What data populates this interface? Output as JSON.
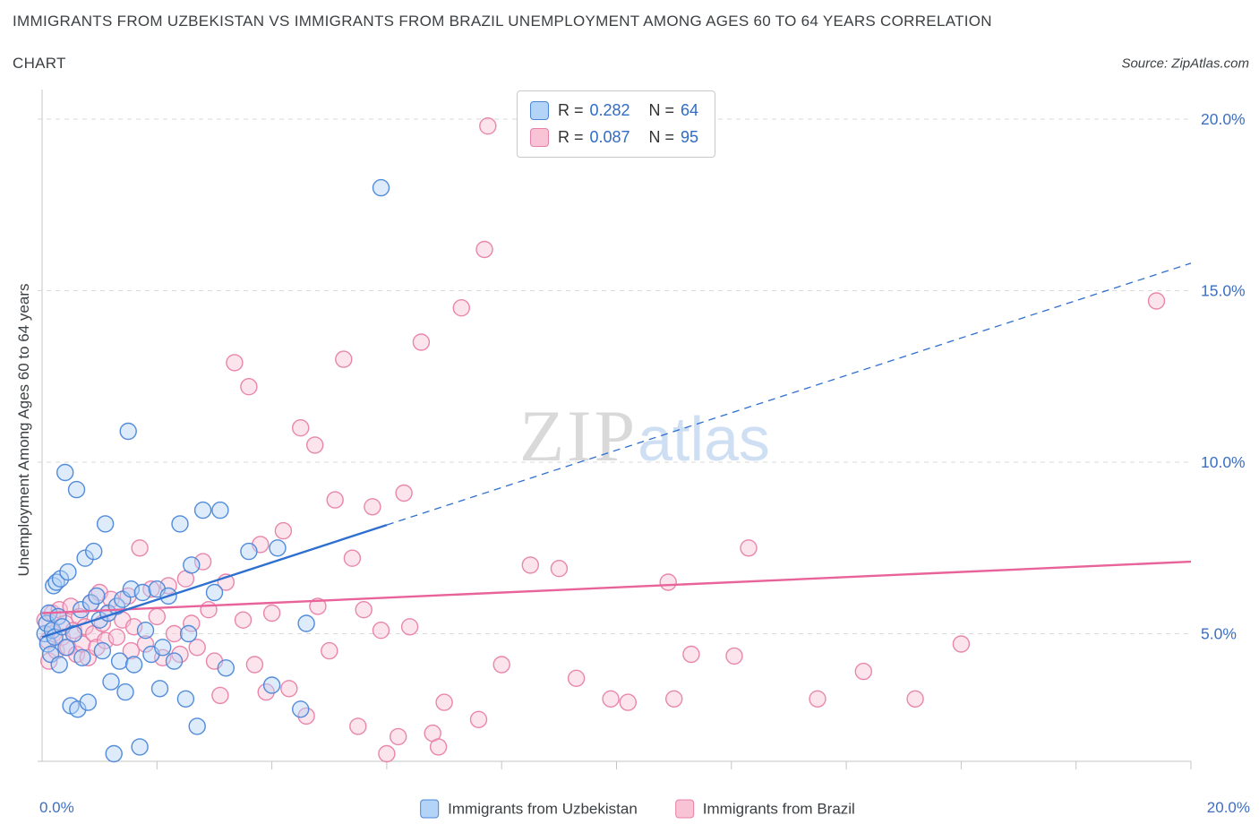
{
  "header": {
    "title_line1": "IMMIGRANTS FROM UZBEKISTAN VS IMMIGRANTS FROM BRAZIL UNEMPLOYMENT AMONG AGES 60 TO 64 YEARS CORRELATION",
    "title_line2": "CHART",
    "source": "Source: ZipAtlas.com"
  },
  "correlation_legend": {
    "rows": [
      {
        "r_label": "R =",
        "r_value": "0.282",
        "n_label": "N =",
        "n_value": "64"
      },
      {
        "r_label": "R =",
        "r_value": "0.087",
        "n_label": "N =",
        "n_value": "95"
      }
    ]
  },
  "axes": {
    "y_label": "Unemployment Among Ages 60 to 64 years",
    "x_min_label": "0.0%",
    "x_max_label": "20.0%"
  },
  "watermark": {
    "zip": "ZIP",
    "atlas": "atlas"
  },
  "bottom_legend": [
    {
      "label": "Immigrants from Uzbekistan"
    },
    {
      "label": "Immigrants from Brazil"
    }
  ],
  "colors": {
    "uzbekistan_fill": "#b3d3f7",
    "uzbekistan_stroke": "#4a86d8",
    "brazil_fill": "#f9c3d6",
    "brazil_stroke": "#e87fa8",
    "uzbekistan_trend": "#2e6fd0",
    "brazil_trend": "#e8639a",
    "tick_label": "#3d6fc0",
    "gridline": "#d9d9d9",
    "axis": "#c4c4c4"
  },
  "chart_data": {
    "type": "scatter",
    "title": "Immigrants from Uzbekistan vs Immigrants from Brazil Unemployment Among Ages 60 to 64 years Correlation Chart",
    "xlabel": "",
    "ylabel": "Unemployment Among Ages 60 to 64 years",
    "xlim": [
      0,
      20
    ],
    "ylim": [
      1.2,
      20.9
    ],
    "grid": true,
    "legend_position": "top-center",
    "y_ticks": [
      {
        "value": 20,
        "label": "20.0%"
      },
      {
        "value": 15,
        "label": "15.0%"
      },
      {
        "value": 10,
        "label": "10.0%"
      },
      {
        "value": 5,
        "label": "5.0%"
      }
    ],
    "x_tick_values": [
      2,
      4,
      6,
      8,
      10,
      12,
      14,
      16,
      18,
      20
    ],
    "series": [
      {
        "name": "Immigrants from Brazil",
        "R": 0.087,
        "N": 95,
        "fill": "#f9c3d6",
        "stroke": "#e87fa8",
        "points": [
          [
            0.05,
            5.4
          ],
          [
            0.1,
            4.8
          ],
          [
            0.12,
            4.2
          ],
          [
            0.18,
            5.6
          ],
          [
            0.2,
            5.0
          ],
          [
            0.25,
            4.5
          ],
          [
            0.3,
            5.7
          ],
          [
            0.35,
            4.9
          ],
          [
            0.4,
            5.3
          ],
          [
            0.45,
            4.6
          ],
          [
            0.5,
            5.8
          ],
          [
            0.55,
            5.1
          ],
          [
            0.6,
            4.4
          ],
          [
            0.65,
            5.5
          ],
          [
            0.7,
            4.7
          ],
          [
            0.75,
            5.2
          ],
          [
            0.8,
            4.3
          ],
          [
            0.85,
            5.9
          ],
          [
            0.9,
            5.0
          ],
          [
            0.95,
            4.6
          ],
          [
            1.0,
            6.2
          ],
          [
            1.05,
            5.3
          ],
          [
            1.1,
            4.8
          ],
          [
            1.15,
            5.6
          ],
          [
            1.2,
            6.0
          ],
          [
            1.3,
            4.9
          ],
          [
            1.4,
            5.4
          ],
          [
            1.5,
            6.1
          ],
          [
            1.55,
            4.5
          ],
          [
            1.6,
            5.2
          ],
          [
            1.7,
            7.5
          ],
          [
            1.8,
            4.7
          ],
          [
            1.9,
            6.3
          ],
          [
            2.0,
            5.5
          ],
          [
            2.1,
            4.3
          ],
          [
            2.2,
            6.4
          ],
          [
            2.3,
            5.0
          ],
          [
            2.4,
            4.4
          ],
          [
            2.5,
            6.6
          ],
          [
            2.6,
            5.3
          ],
          [
            2.7,
            4.6
          ],
          [
            2.8,
            7.1
          ],
          [
            2.9,
            5.7
          ],
          [
            3.0,
            4.2
          ],
          [
            3.1,
            3.2
          ],
          [
            3.2,
            6.5
          ],
          [
            3.35,
            12.9
          ],
          [
            3.5,
            5.4
          ],
          [
            3.6,
            12.2
          ],
          [
            3.7,
            4.1
          ],
          [
            3.8,
            7.6
          ],
          [
            3.9,
            3.3
          ],
          [
            4.0,
            5.6
          ],
          [
            4.2,
            8.0
          ],
          [
            4.3,
            3.4
          ],
          [
            4.5,
            11.0
          ],
          [
            4.6,
            2.6
          ],
          [
            4.75,
            10.5
          ],
          [
            4.8,
            5.8
          ],
          [
            5.0,
            4.5
          ],
          [
            5.1,
            8.9
          ],
          [
            5.25,
            13.0
          ],
          [
            5.4,
            7.2
          ],
          [
            5.5,
            2.3
          ],
          [
            5.6,
            5.7
          ],
          [
            5.75,
            8.7
          ],
          [
            5.9,
            5.1
          ],
          [
            6.0,
            1.5
          ],
          [
            6.2,
            2.0
          ],
          [
            6.3,
            9.1
          ],
          [
            6.4,
            5.2
          ],
          [
            6.6,
            13.5
          ],
          [
            6.8,
            2.1
          ],
          [
            6.9,
            1.7
          ],
          [
            7.0,
            3.0
          ],
          [
            7.3,
            14.5
          ],
          [
            7.6,
            2.5
          ],
          [
            7.7,
            16.2
          ],
          [
            7.76,
            19.8
          ],
          [
            8.0,
            4.1
          ],
          [
            8.5,
            7.0
          ],
          [
            9.0,
            6.9
          ],
          [
            9.3,
            3.7
          ],
          [
            9.9,
            3.1
          ],
          [
            10.2,
            3.0
          ],
          [
            10.9,
            6.5
          ],
          [
            11.0,
            3.1
          ],
          [
            11.3,
            4.4
          ],
          [
            12.05,
            4.35
          ],
          [
            12.3,
            7.5
          ],
          [
            13.5,
            3.1
          ],
          [
            14.3,
            3.9
          ],
          [
            15.2,
            3.1
          ],
          [
            16.0,
            4.7
          ],
          [
            19.4,
            14.7
          ]
        ]
      },
      {
        "name": "Immigrants from Uzbekistan",
        "R": 0.282,
        "N": 64,
        "fill": "#b3d3f7",
        "stroke": "#4a86d8",
        "points": [
          [
            0.05,
            5.0
          ],
          [
            0.08,
            5.3
          ],
          [
            0.1,
            4.7
          ],
          [
            0.12,
            5.6
          ],
          [
            0.15,
            4.4
          ],
          [
            0.18,
            5.1
          ],
          [
            0.2,
            6.4
          ],
          [
            0.22,
            4.9
          ],
          [
            0.25,
            6.5
          ],
          [
            0.28,
            5.5
          ],
          [
            0.3,
            4.1
          ],
          [
            0.32,
            6.6
          ],
          [
            0.35,
            5.2
          ],
          [
            0.4,
            9.7
          ],
          [
            0.42,
            4.6
          ],
          [
            0.45,
            6.8
          ],
          [
            0.5,
            2.9
          ],
          [
            0.55,
            5.0
          ],
          [
            0.6,
            9.2
          ],
          [
            0.62,
            2.8
          ],
          [
            0.68,
            5.7
          ],
          [
            0.7,
            4.3
          ],
          [
            0.75,
            7.2
          ],
          [
            0.8,
            3.0
          ],
          [
            0.85,
            5.9
          ],
          [
            0.9,
            7.4
          ],
          [
            0.95,
            6.1
          ],
          [
            1.0,
            5.4
          ],
          [
            1.05,
            4.5
          ],
          [
            1.1,
            8.2
          ],
          [
            1.15,
            5.6
          ],
          [
            1.2,
            3.6
          ],
          [
            1.25,
            1.5
          ],
          [
            1.3,
            5.8
          ],
          [
            1.35,
            4.2
          ],
          [
            1.4,
            6.0
          ],
          [
            1.45,
            3.3
          ],
          [
            1.5,
            10.9
          ],
          [
            1.55,
            6.3
          ],
          [
            1.6,
            4.1
          ],
          [
            1.7,
            1.7
          ],
          [
            1.75,
            6.2
          ],
          [
            1.8,
            5.1
          ],
          [
            1.9,
            4.4
          ],
          [
            2.0,
            6.3
          ],
          [
            2.05,
            3.4
          ],
          [
            2.1,
            4.6
          ],
          [
            2.2,
            6.1
          ],
          [
            2.3,
            4.2
          ],
          [
            2.4,
            8.2
          ],
          [
            2.5,
            3.1
          ],
          [
            2.55,
            5.0
          ],
          [
            2.6,
            7.0
          ],
          [
            2.7,
            2.3
          ],
          [
            2.8,
            8.6
          ],
          [
            3.0,
            6.2
          ],
          [
            3.1,
            8.6
          ],
          [
            3.2,
            4.0
          ],
          [
            3.6,
            7.4
          ],
          [
            4.0,
            3.5
          ],
          [
            4.1,
            7.5
          ],
          [
            4.5,
            2.8
          ],
          [
            4.6,
            5.3
          ],
          [
            5.9,
            18.0
          ]
        ]
      }
    ],
    "trend_lines": [
      {
        "series": "Immigrants from Brazil",
        "color": "#e8639a",
        "start": [
          0,
          5.6
        ],
        "end": [
          20,
          7.1
        ],
        "solid_until_x": 20
      },
      {
        "series": "Immigrants from Uzbekistan",
        "color": "#2e6fd0",
        "start": [
          0,
          4.9
        ],
        "end": [
          20,
          15.8
        ],
        "solid_until_x": 6.0
      }
    ]
  }
}
